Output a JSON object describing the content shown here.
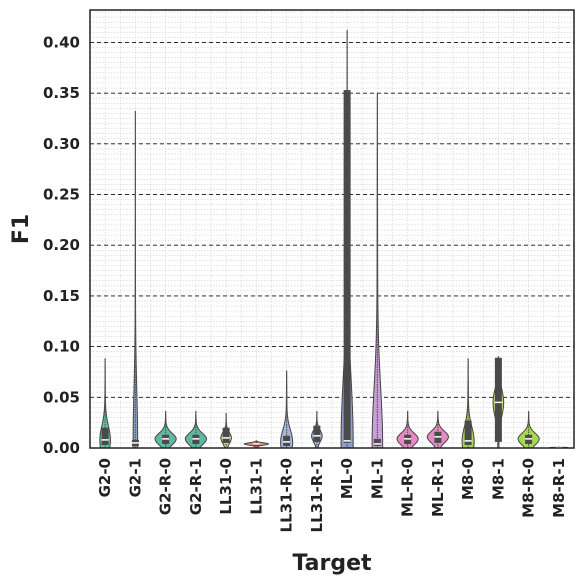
{
  "chart_data": {
    "type": "violin",
    "xlabel": "Target",
    "ylabel": "F1",
    "ylim": [
      0,
      0.432
    ],
    "yticks": [
      "0.00",
      "0.05",
      "0.10",
      "0.15",
      "0.20",
      "0.25",
      "0.30",
      "0.35",
      "0.40"
    ],
    "grid": true,
    "categories": [
      "G2-0",
      "G2-1",
      "G2-R-0",
      "G2-R-1",
      "LL31-0",
      "LL31-1",
      "LL31-R-0",
      "LL31-R-1",
      "ML-0",
      "ML-1",
      "ML-R-0",
      "ML-R-1",
      "M8-0",
      "M8-1",
      "M8-R-0",
      "M8-R-1"
    ],
    "series": [
      {
        "category": "G2-0",
        "color": "#66c2a5",
        "min": 0.0,
        "max": 0.088,
        "q1": 0.003,
        "median": 0.008,
        "q3": 0.02,
        "maxwidth": 0.35
      },
      {
        "category": "G2-1",
        "color": "#8aa8c8",
        "min": 0.0,
        "max": 0.332,
        "q1": 0.002,
        "median": 0.005,
        "q3": 0.008,
        "maxwidth": 0.15
      },
      {
        "category": "G2-R-0",
        "color": "#5fb8a0",
        "min": 0.0,
        "max": 0.036,
        "q1": 0.004,
        "median": 0.009,
        "q3": 0.013,
        "maxwidth": 0.7
      },
      {
        "category": "G2-R-1",
        "color": "#5fb8a0",
        "min": 0.0,
        "max": 0.036,
        "q1": 0.004,
        "median": 0.009,
        "q3": 0.013,
        "maxwidth": 0.7
      },
      {
        "category": "LL31-0",
        "color": "#b7d37c",
        "min": 0.0,
        "max": 0.034,
        "q1": 0.005,
        "median": 0.01,
        "q3": 0.02,
        "maxwidth": 0.35
      },
      {
        "category": "LL31-1",
        "color": "#fc8d62",
        "min": 0.0,
        "max": 0.007,
        "q1": 0.002,
        "median": 0.004,
        "q3": 0.005,
        "maxwidth": 0.8
      },
      {
        "category": "LL31-R-0",
        "color": "#a6b7d8",
        "min": 0.0,
        "max": 0.076,
        "q1": 0.002,
        "median": 0.006,
        "q3": 0.012,
        "maxwidth": 0.4
      },
      {
        "category": "LL31-R-1",
        "color": "#a6b7d8",
        "min": 0.0,
        "max": 0.036,
        "q1": 0.006,
        "median": 0.012,
        "q3": 0.022,
        "maxwidth": 0.35
      },
      {
        "category": "ML-0",
        "color": "#8da0cb",
        "min": 0.0,
        "max": 0.412,
        "q1": 0.005,
        "median": 0.007,
        "q3": 0.353,
        "maxwidth": 0.4
      },
      {
        "category": "ML-1",
        "color": "#c9a0d8",
        "min": 0.0,
        "max": 0.35,
        "q1": 0.002,
        "median": 0.004,
        "q3": 0.009,
        "maxwidth": 0.35
      },
      {
        "category": "ML-R-0",
        "color": "#e78ac3",
        "min": 0.0,
        "max": 0.036,
        "q1": 0.004,
        "median": 0.009,
        "q3": 0.013,
        "maxwidth": 0.7
      },
      {
        "category": "ML-R-1",
        "color": "#e78ac3",
        "min": 0.0,
        "max": 0.036,
        "q1": 0.005,
        "median": 0.011,
        "q3": 0.016,
        "maxwidth": 0.7
      },
      {
        "category": "M8-0",
        "color": "#a6d854",
        "min": 0.0,
        "max": 0.088,
        "q1": 0.003,
        "median": 0.007,
        "q3": 0.027,
        "maxwidth": 0.4
      },
      {
        "category": "M8-1",
        "color": "#c2d96e",
        "min": 0.0,
        "max": 0.09,
        "q1": 0.006,
        "median": 0.045,
        "q3": 0.089,
        "maxwidth": 0.35
      },
      {
        "category": "M8-R-0",
        "color": "#a6d854",
        "min": 0.0,
        "max": 0.036,
        "q1": 0.004,
        "median": 0.009,
        "q3": 0.013,
        "maxwidth": 0.7
      },
      {
        "category": "M8-R-1",
        "color": "#dde89a",
        "min": 0.0,
        "max": 0.001,
        "q1": 0.0,
        "median": 0.0005,
        "q3": 0.001,
        "maxwidth": 0.6
      }
    ]
  }
}
